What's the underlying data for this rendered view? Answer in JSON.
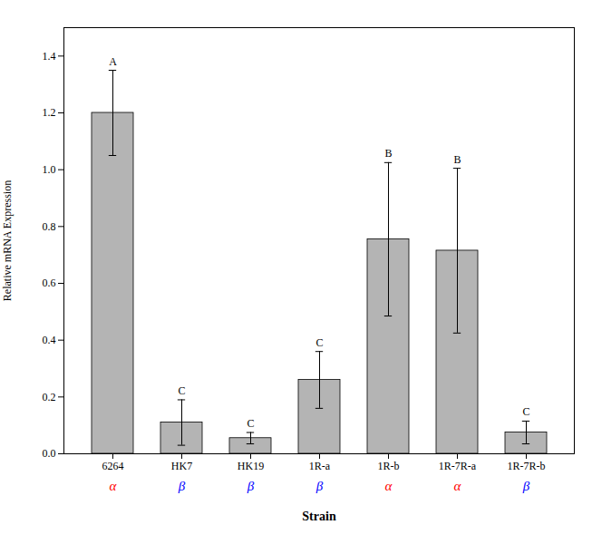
{
  "chart_data": {
    "type": "bar",
    "categories": [
      "6264",
      "HK7",
      "HK19",
      "1R-a",
      "1R-b",
      "1R-7R-a",
      "1R-7R-b"
    ],
    "values": [
      1.2,
      0.11,
      0.055,
      0.26,
      0.755,
      0.715,
      0.075
    ],
    "errors": [
      0.15,
      0.08,
      0.02,
      0.1,
      0.27,
      0.29,
      0.04
    ],
    "bar_labels": [
      "A",
      "C",
      "C",
      "C",
      "B",
      "B",
      "C"
    ],
    "group_labels": [
      "α",
      "β",
      "β",
      "β",
      "α",
      "α",
      "β"
    ],
    "group_colors": [
      "red",
      "blue",
      "blue",
      "blue",
      "red",
      "red",
      "blue"
    ],
    "color": "#b4b4b4",
    "edge_color": "#000000",
    "ylabel": "Relative mRNA Expression",
    "xlabel": "Strain",
    "ylim": [
      0,
      1.5
    ],
    "yticks": [
      {
        "value": 0,
        "label": "0.0"
      },
      0.2,
      0.4,
      0.6,
      0.8,
      {
        "value": 1,
        "label": "1.0"
      },
      1.2,
      1.4
    ],
    "grid": false
  }
}
